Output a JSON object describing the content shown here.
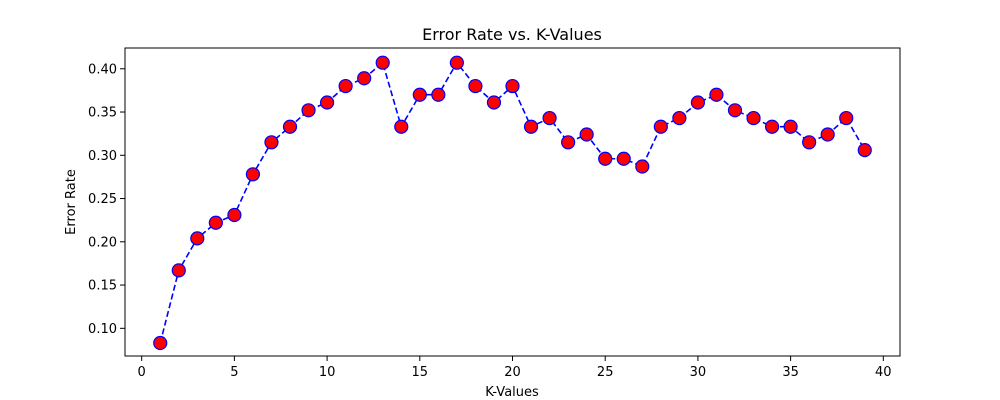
{
  "chart_data": {
    "type": "line",
    "title": "Error Rate vs. K-Values",
    "xlabel": "K-Values",
    "ylabel": "Error Rate",
    "xlim": [
      -0.9,
      40.9
    ],
    "ylim": [
      0.068,
      0.424
    ],
    "xticks": [
      "0",
      "5",
      "10",
      "15",
      "20",
      "25",
      "30",
      "35",
      "40"
    ],
    "yticks": [
      "0.10",
      "0.15",
      "0.20",
      "0.25",
      "0.30",
      "0.35",
      "0.40"
    ],
    "grid": false,
    "series": [
      {
        "line_color": "#0000ff",
        "line_style": "dashed",
        "marker": "circle",
        "marker_face": "#ff0000",
        "marker_edge": "#0000ff",
        "x": [
          1,
          2,
          3,
          4,
          5,
          6,
          7,
          8,
          9,
          10,
          11,
          12,
          13,
          14,
          15,
          16,
          17,
          18,
          19,
          20,
          21,
          22,
          23,
          24,
          25,
          26,
          27,
          28,
          29,
          30,
          31,
          32,
          33,
          34,
          35,
          36,
          37,
          38,
          39
        ],
        "y": [
          0.083,
          0.167,
          0.204,
          0.222,
          0.231,
          0.278,
          0.315,
          0.333,
          0.352,
          0.361,
          0.38,
          0.389,
          0.407,
          0.333,
          0.37,
          0.37,
          0.407,
          0.38,
          0.361,
          0.38,
          0.333,
          0.343,
          0.315,
          0.324,
          0.296,
          0.296,
          0.287,
          0.333,
          0.343,
          0.361,
          0.37,
          0.352,
          0.343,
          0.333,
          0.333,
          0.315,
          0.324,
          0.343,
          0.306
        ]
      }
    ]
  }
}
